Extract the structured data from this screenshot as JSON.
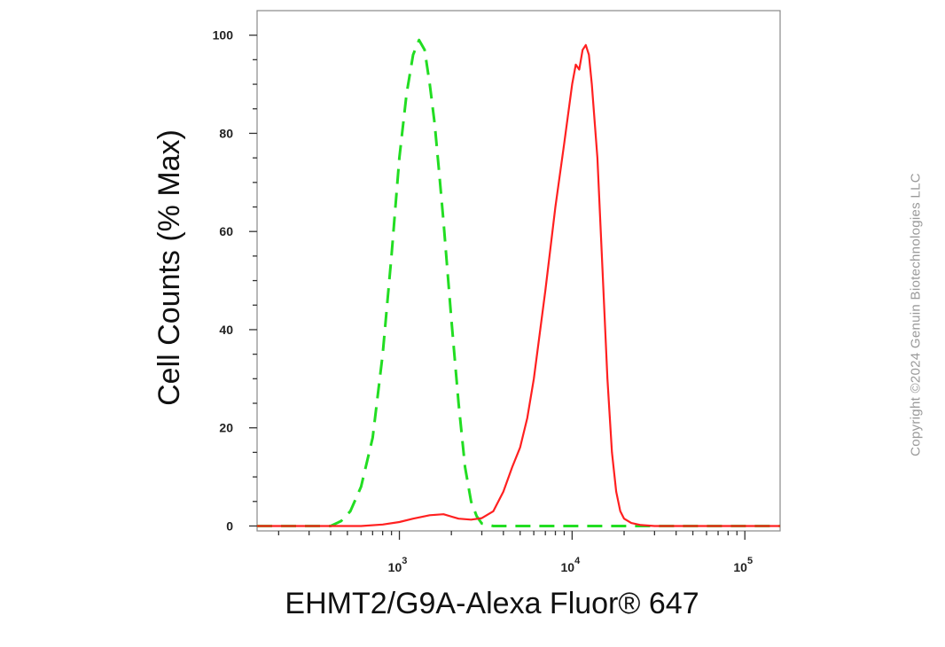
{
  "chart_data": {
    "type": "line",
    "title": "",
    "xlabel": "EHMT2/G9A-Alexa Fluor® 647",
    "ylabel": "Cell Counts (% Max)",
    "xscale": "log",
    "xlim": [
      150,
      160000
    ],
    "ylim": [
      -1,
      105
    ],
    "x_ticks": [
      {
        "base": "10",
        "exp": "3",
        "value": 1000
      },
      {
        "base": "10",
        "exp": "4",
        "value": 10000
      },
      {
        "base": "10",
        "exp": "5",
        "value": 100000
      }
    ],
    "y_ticks": [
      {
        "label": "0",
        "value": 0
      },
      {
        "label": "20",
        "value": 20
      },
      {
        "label": "40",
        "value": 40
      },
      {
        "label": "60",
        "value": 60
      },
      {
        "label": "80",
        "value": 80
      },
      {
        "label": "100",
        "value": 100
      }
    ],
    "grid": false,
    "legend": "none",
    "series": [
      {
        "color": "#22dd22",
        "dash": "dashed",
        "x": [
          150,
          300,
          400,
          460,
          520,
          600,
          700,
          800,
          900,
          1000,
          1100,
          1200,
          1300,
          1400,
          1500,
          1600,
          1700,
          1800,
          2000,
          2200,
          2400,
          2600,
          2800,
          3000,
          3500,
          5000,
          10000,
          20000,
          50000,
          160000
        ],
        "y": [
          0,
          0,
          0,
          1,
          3,
          8,
          18,
          35,
          55,
          75,
          88,
          96,
          99,
          97,
          90,
          82,
          72,
          62,
          42,
          25,
          12,
          5,
          2,
          0.5,
          0,
          0,
          0,
          0,
          0,
          0
        ]
      },
      {
        "color": "#ff2020",
        "dash": "solid",
        "x": [
          150,
          400,
          600,
          800,
          1000,
          1200,
          1500,
          1800,
          2200,
          2600,
          3000,
          3500,
          4000,
          4500,
          5000,
          5500,
          6000,
          7000,
          8000,
          9000,
          10000,
          10500,
          11000,
          11500,
          12000,
          12500,
          13000,
          14000,
          15000,
          16000,
          17000,
          18000,
          19000,
          20000,
          22000,
          25000,
          30000,
          50000,
          160000
        ],
        "y": [
          0,
          0,
          0,
          0.3,
          0.8,
          1.5,
          2.2,
          2.4,
          1.5,
          1.3,
          1.6,
          3,
          7,
          12,
          16,
          22,
          30,
          48,
          65,
          78,
          90,
          94,
          93,
          97,
          98,
          96,
          90,
          75,
          52,
          30,
          15,
          7,
          3,
          1.5,
          0.6,
          0.2,
          0,
          0,
          0
        ]
      }
    ]
  },
  "watermark": "Copyright ©2024 Genuin Biotechnologies LLC"
}
